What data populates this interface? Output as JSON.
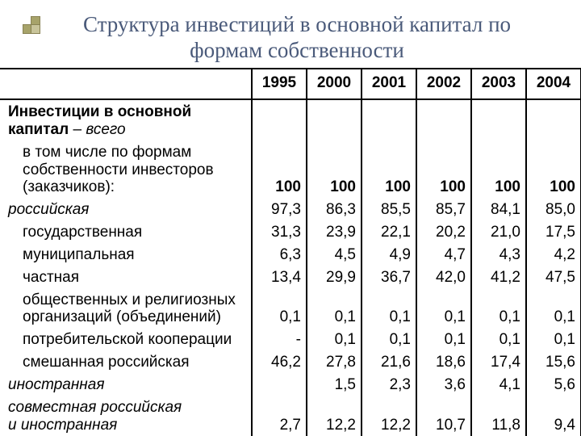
{
  "title_line1": "Структура инвестиций в основной капитал по",
  "title_line2": "формам собственности",
  "table": {
    "years": [
      "1995",
      "2000",
      "2001",
      "2002",
      "2003",
      "2004"
    ],
    "rows": [
      {
        "label_html": "<span class='bold'>Инвестиции в основной<br>капитал</span> – <span class='ital'>всего</span>",
        "indent": 0,
        "values": [
          "100",
          "100",
          "100",
          "100",
          "100",
          "100"
        ],
        "bold_values": true,
        "sublabel_html": "в том числе по формам<br>собственности инвесторов<br>(заказчиков):"
      },
      {
        "label_html": "<span class='ital'>российская</span>",
        "indent": 0,
        "values": [
          "97,3",
          "86,3",
          "85,5",
          "85,7",
          "84,1",
          "85,0"
        ]
      },
      {
        "label_html": "государственная",
        "indent": 1,
        "values": [
          "31,3",
          "23,9",
          "22,1",
          "20,2",
          "21,0",
          "17,5"
        ]
      },
      {
        "label_html": "муниципальная",
        "indent": 1,
        "values": [
          "6,3",
          "4,5",
          "4,9",
          "4,7",
          "4,3",
          "4,2"
        ]
      },
      {
        "label_html": "частная",
        "indent": 1,
        "values": [
          "13,4",
          "29,9",
          "36,7",
          "42,0",
          "41,2",
          "47,5"
        ]
      },
      {
        "label_html": "общественных и религиозных<br>организаций (объединений)",
        "indent": 1,
        "values": [
          "0,1",
          "0,1",
          "0,1",
          "0,1",
          "0,1",
          "0,1"
        ]
      },
      {
        "label_html": "потребительской кооперации",
        "indent": 1,
        "values": [
          "-",
          "0,1",
          "0,1",
          "0,1",
          "0,1",
          "0,1"
        ]
      },
      {
        "label_html": "смешанная российская",
        "indent": 1,
        "values": [
          "46,2",
          "27,8",
          "21,6",
          "18,6",
          "17,4",
          "15,6"
        ]
      },
      {
        "label_html": "<span class='ital'>иностранная</span>",
        "indent": 0,
        "values": [
          "",
          "1,5",
          "2,3",
          "3,6",
          "4,1",
          "5,6"
        ]
      },
      {
        "label_html": "<span class='ital'>совместная российская<br>и иностранная</span>",
        "indent": 0,
        "values": [
          "2,7",
          "12,2",
          "12,2",
          "10,7",
          "11,8",
          "9,4"
        ]
      }
    ]
  },
  "colors": {
    "title": "#4a5a7a",
    "deco_fill": "#a7a36a",
    "deco_border": "#888254",
    "table_border": "#000000",
    "text": "#000000",
    "background": "#ffffff"
  },
  "fonts": {
    "title_family": "Georgia, 'Times New Roman', serif",
    "title_size_pt": 20,
    "table_family": "Arial, sans-serif",
    "table_size_pt": 14
  }
}
